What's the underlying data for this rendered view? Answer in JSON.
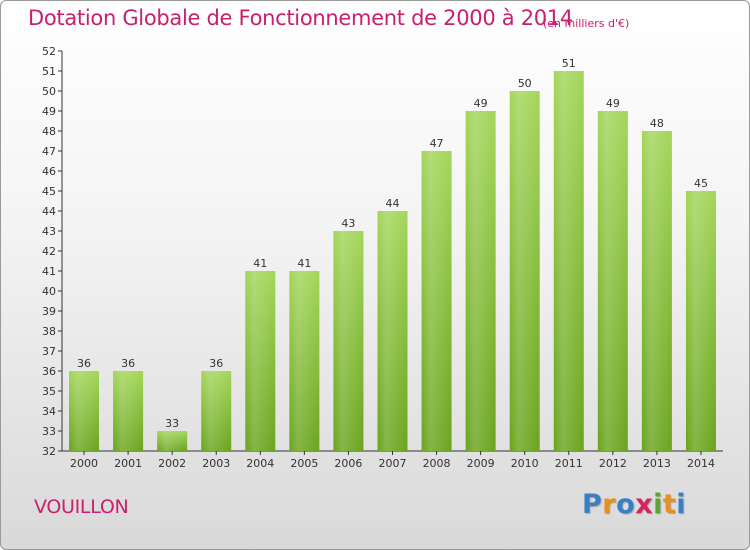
{
  "header": {
    "title": "Dotation Globale de Fonctionnement de 2000 à 2014",
    "subtitle": "(en milliers d'€)"
  },
  "footer": {
    "commune": "VOUILLON",
    "logo_letters": [
      "P",
      "r",
      "o",
      "x",
      "i",
      "t",
      "i"
    ],
    "logo_colors": [
      "#3a7fc4",
      "#e8901c",
      "#3a7fc4",
      "#d6245f",
      "#5aa52c",
      "#e8901c",
      "#3a7fc4"
    ]
  },
  "chart_data": {
    "type": "bar",
    "categories": [
      "2000",
      "2001",
      "2002",
      "2003",
      "2004",
      "2005",
      "2006",
      "2007",
      "2008",
      "2009",
      "2010",
      "2011",
      "2012",
      "2013",
      "2014"
    ],
    "values": [
      36,
      36,
      33,
      36,
      41,
      41,
      43,
      44,
      47,
      49,
      50,
      51,
      49,
      48,
      45
    ],
    "ylim": [
      32,
      52
    ],
    "yticks": [
      32,
      33,
      34,
      35,
      36,
      37,
      38,
      39,
      40,
      41,
      42,
      43,
      44,
      45,
      46,
      47,
      48,
      49,
      50,
      51,
      52
    ],
    "grid": false,
    "bar_color": "#7cb62a",
    "bar_color_light": "#a3d65a"
  }
}
